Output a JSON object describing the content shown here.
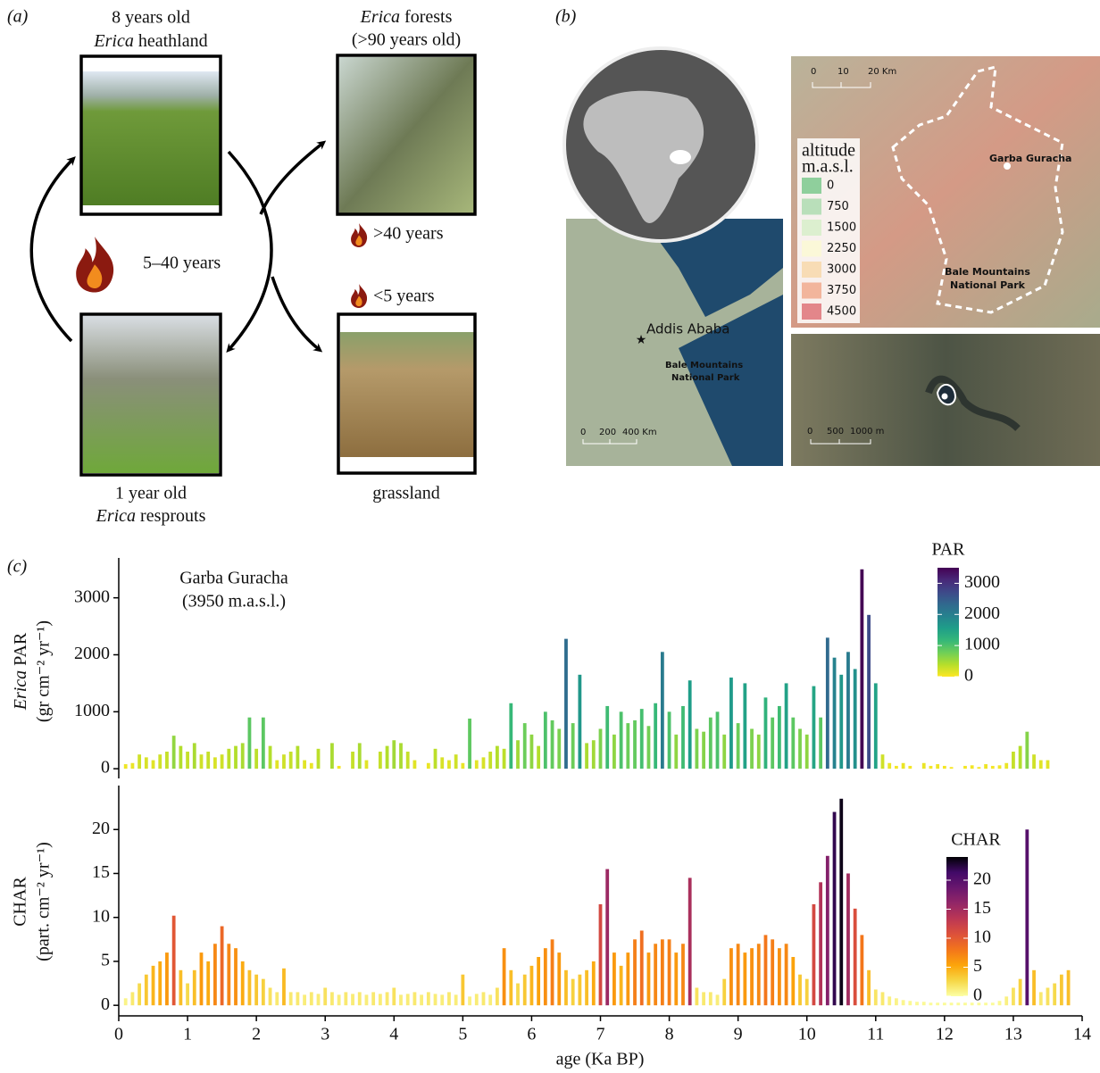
{
  "panel_a": {
    "label": "(a)",
    "heathland": {
      "line1": "8 years old",
      "italic": "Erica",
      "rest": " heathland"
    },
    "forest": {
      "italic": "Erica",
      "rest": " forests",
      "line2": "(>90 years old)"
    },
    "resprouts": {
      "line1": "1 year old",
      "italic": "Erica",
      "rest": " resprouts"
    },
    "grassland": "grassland",
    "fire_main": "5–40 years",
    "fire_forest": ">40 years",
    "fire_grass": "<5 years"
  },
  "panel_b": {
    "label": "(b)",
    "relief_scale": [
      "0",
      "10",
      "20 Km"
    ],
    "site": "Garba Guracha",
    "park": [
      "Bale Mountains",
      "National Park"
    ],
    "city": "Addis Ababa",
    "park_small": [
      "Bale Mountains",
      "National Park"
    ],
    "country_scale": [
      "0",
      "200",
      "400 Km"
    ],
    "satellite_scale": [
      "0",
      "500",
      "1000 m"
    ],
    "altitude_legend": {
      "title": [
        "altitude",
        "m.a.s.l."
      ],
      "items": [
        {
          "label": 0,
          "color": "#8fcf9c"
        },
        {
          "label": 750,
          "color": "#b9dfba"
        },
        {
          "label": 1500,
          "color": "#dcefcf"
        },
        {
          "label": 2250,
          "color": "#fbf8d8"
        },
        {
          "label": 3000,
          "color": "#f8dcb5"
        },
        {
          "label": 3750,
          "color": "#f2b59c"
        },
        {
          "label": 4500,
          "color": "#e3868a"
        }
      ]
    }
  },
  "panel_c_label": "(c)",
  "chart_data": [
    {
      "type": "bar",
      "annotation": [
        "Garba Guracha",
        "(3950 m.a.s.l.)"
      ],
      "y_label": {
        "italic": "Erica",
        "rest": " PAR",
        "line2": "(gr cm⁻² yr⁻¹)"
      },
      "xlim": [
        0,
        14
      ],
      "ylim": [
        -170,
        3700
      ],
      "yticks": [
        0,
        1000,
        2000,
        3000
      ],
      "colorbar_title": "PAR",
      "clim": [
        0,
        3500
      ],
      "cticks": [
        0,
        1000,
        2000,
        3000
      ],
      "colormap": [
        "#fde725",
        "#b5de2b",
        "#6ece58",
        "#35b779",
        "#1f9e89",
        "#26828e",
        "#31688e",
        "#3e4989",
        "#482878",
        "#440154"
      ],
      "x": [
        0.1,
        0.2,
        0.3,
        0.4,
        0.5,
        0.6,
        0.7,
        0.8,
        0.9,
        1.0,
        1.1,
        1.2,
        1.3,
        1.4,
        1.5,
        1.6,
        1.7,
        1.8,
        1.9,
        2.0,
        2.1,
        2.2,
        2.3,
        2.4,
        2.5,
        2.6,
        2.7,
        2.8,
        2.9,
        3.0,
        3.1,
        3.2,
        3.3,
        3.4,
        3.5,
        3.6,
        3.7,
        3.8,
        3.9,
        4.0,
        4.1,
        4.2,
        4.3,
        4.4,
        4.5,
        4.6,
        4.7,
        4.8,
        4.9,
        5.0,
        5.1,
        5.2,
        5.3,
        5.4,
        5.5,
        5.6,
        5.7,
        5.8,
        5.9,
        6.0,
        6.1,
        6.2,
        6.3,
        6.4,
        6.5,
        6.6,
        6.7,
        6.8,
        6.9,
        7.0,
        7.1,
        7.2,
        7.3,
        7.4,
        7.5,
        7.6,
        7.7,
        7.8,
        7.9,
        8.0,
        8.1,
        8.2,
        8.3,
        8.4,
        8.5,
        8.6,
        8.7,
        8.8,
        8.9,
        9.0,
        9.1,
        9.2,
        9.3,
        9.4,
        9.5,
        9.6,
        9.7,
        9.8,
        9.9,
        10.0,
        10.1,
        10.2,
        10.3,
        10.4,
        10.5,
        10.6,
        10.7,
        10.8,
        10.9,
        11.0,
        11.1,
        11.2,
        11.3,
        11.4,
        11.5,
        11.6,
        11.7,
        11.8,
        11.9,
        12.0,
        12.1,
        12.2,
        12.3,
        12.4,
        12.5,
        12.6,
        12.7,
        12.8,
        12.9,
        13.0,
        13.1,
        13.2,
        13.3,
        13.4,
        13.5
      ],
      "values": [
        80,
        100,
        250,
        200,
        150,
        250,
        300,
        580,
        400,
        300,
        450,
        250,
        300,
        200,
        250,
        350,
        400,
        450,
        900,
        350,
        900,
        400,
        150,
        250,
        300,
        400,
        150,
        100,
        350,
        0,
        450,
        50,
        0,
        300,
        450,
        150,
        0,
        300,
        400,
        500,
        450,
        300,
        150,
        0,
        100,
        350,
        200,
        150,
        250,
        100,
        880,
        150,
        200,
        300,
        400,
        350,
        1150,
        500,
        800,
        600,
        400,
        1000,
        850,
        700,
        2280,
        800,
        1650,
        450,
        500,
        700,
        1100,
        600,
        1000,
        800,
        850,
        1050,
        750,
        1150,
        2050,
        1000,
        600,
        1100,
        1550,
        700,
        650,
        900,
        1000,
        600,
        1600,
        800,
        1500,
        700,
        600,
        1250,
        900,
        1100,
        1500,
        900,
        700,
        600,
        1450,
        900,
        2300,
        1950,
        1650,
        2050,
        1750,
        3500,
        2700,
        1500,
        250,
        100,
        50,
        100,
        50,
        0,
        100,
        50,
        80,
        50,
        30,
        0,
        50,
        60,
        30,
        80,
        50,
        60,
        100,
        300,
        400,
        650,
        250,
        150,
        150
      ]
    },
    {
      "type": "bar",
      "y_label": {
        "line1": "CHAR",
        "line2": "(part. cm⁻² yr⁻¹)"
      },
      "x_label": "age (Ka BP)",
      "xlim": [
        0,
        14
      ],
      "xticks": [
        0,
        1,
        2,
        3,
        4,
        5,
        6,
        7,
        8,
        9,
        10,
        11,
        12,
        13,
        14
      ],
      "ylim": [
        -1.2,
        25
      ],
      "yticks": [
        0,
        5,
        10,
        15,
        20
      ],
      "colorbar_title": "CHAR",
      "clim": [
        0,
        24
      ],
      "cticks": [
        0,
        5,
        10,
        15,
        20
      ],
      "colormap": [
        "#fcffa4",
        "#f6d746",
        "#fca50a",
        "#f3761b",
        "#dd513a",
        "#bc3754",
        "#932667",
        "#6a176e",
        "#420a68",
        "#000004"
      ],
      "x": [
        0.1,
        0.2,
        0.3,
        0.4,
        0.5,
        0.6,
        0.7,
        0.8,
        0.9,
        1.0,
        1.1,
        1.2,
        1.3,
        1.4,
        1.5,
        1.6,
        1.7,
        1.8,
        1.9,
        2.0,
        2.1,
        2.2,
        2.3,
        2.4,
        2.5,
        2.6,
        2.7,
        2.8,
        2.9,
        3.0,
        3.1,
        3.2,
        3.3,
        3.4,
        3.5,
        3.6,
        3.7,
        3.8,
        3.9,
        4.0,
        4.1,
        4.2,
        4.3,
        4.4,
        4.5,
        4.6,
        4.7,
        4.8,
        4.9,
        5.0,
        5.1,
        5.2,
        5.3,
        5.4,
        5.5,
        5.6,
        5.7,
        5.8,
        5.9,
        6.0,
        6.1,
        6.2,
        6.3,
        6.4,
        6.5,
        6.6,
        6.7,
        6.8,
        6.9,
        7.0,
        7.1,
        7.2,
        7.3,
        7.4,
        7.5,
        7.6,
        7.7,
        7.8,
        7.9,
        8.0,
        8.1,
        8.2,
        8.3,
        8.4,
        8.5,
        8.6,
        8.7,
        8.8,
        8.9,
        9.0,
        9.1,
        9.2,
        9.3,
        9.4,
        9.5,
        9.6,
        9.7,
        9.8,
        9.9,
        10.0,
        10.1,
        10.2,
        10.3,
        10.4,
        10.5,
        10.6,
        10.7,
        10.8,
        10.9,
        11.0,
        11.1,
        11.2,
        11.3,
        11.4,
        11.5,
        11.6,
        11.7,
        11.8,
        11.9,
        12.0,
        12.1,
        12.2,
        12.3,
        12.4,
        12.5,
        12.6,
        12.7,
        12.8,
        12.9,
        13.0,
        13.1,
        13.2,
        13.3,
        13.4,
        13.5,
        13.6,
        13.7,
        13.8
      ],
      "values": [
        0.8,
        1.5,
        2.5,
        3.5,
        4.5,
        5,
        6,
        10.2,
        4,
        2.5,
        4,
        6,
        5,
        7,
        9,
        7,
        6.5,
        5,
        4,
        3.5,
        3,
        2,
        1.5,
        4.2,
        1.5,
        1.5,
        1.2,
        1.5,
        1.3,
        2,
        1.5,
        1.2,
        1.5,
        1.3,
        1.5,
        1.2,
        1.5,
        1.3,
        1.5,
        2,
        1.2,
        1.3,
        1.5,
        1.2,
        1.5,
        1.3,
        1.2,
        1.5,
        1.2,
        3.5,
        1,
        1.3,
        1.5,
        1.2,
        2,
        6.5,
        4,
        2.5,
        3.5,
        4.5,
        5.5,
        6.5,
        7.5,
        6,
        4,
        3,
        3.5,
        4,
        5,
        11.5,
        15.5,
        6,
        4.5,
        6,
        7.5,
        8.5,
        6,
        7,
        7.5,
        7.5,
        6,
        7,
        14.5,
        2,
        1.5,
        1.5,
        1.2,
        3,
        6.5,
        7,
        6,
        6.5,
        7,
        8,
        7.5,
        6.5,
        7,
        5.5,
        3.5,
        3,
        11.5,
        14,
        17,
        22,
        23.5,
        15,
        11,
        8,
        4,
        1.8,
        1.5,
        1,
        0.8,
        0.6,
        0.5,
        0.4,
        0.4,
        0.3,
        0.3,
        0.3,
        0.3,
        0.3,
        0.3,
        0.3,
        0.3,
        0.3,
        0.3,
        0.5,
        1,
        2,
        3,
        20,
        4,
        1.5,
        2,
        2.5,
        3.5,
        4
      ]
    }
  ]
}
